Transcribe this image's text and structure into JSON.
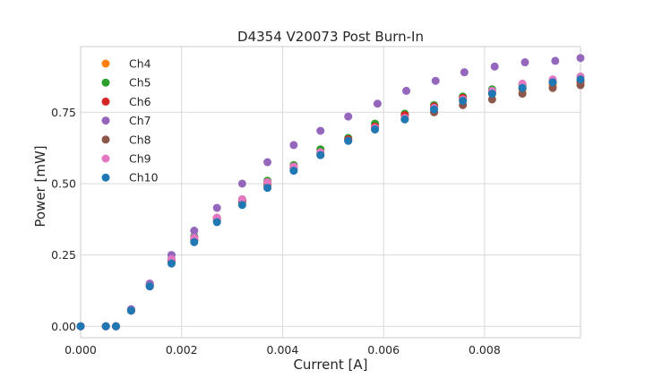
{
  "chart_data": {
    "type": "scatter",
    "title": "D4354 V20073 Post Burn-In",
    "xlabel": "Current [A]",
    "ylabel": "Power [mW]",
    "xlim": [
      0,
      0.0099
    ],
    "ylim": [
      -0.04,
      0.98
    ],
    "x_ticks": [
      0,
      0.002,
      0.004,
      0.006,
      0.008
    ],
    "x_tick_labels": [
      "0.000",
      "0.002",
      "0.004",
      "0.006",
      "0.008"
    ],
    "y_ticks": [
      0,
      0.25,
      0.5,
      0.75
    ],
    "y_tick_labels": [
      "0.00",
      "0.25",
      "0.50",
      "0.75"
    ],
    "grid": true,
    "legend_position": "top-left",
    "series": [
      {
        "name": "Ch4",
        "color": "#ff7f0e",
        "x": [
          0,
          0.0005,
          0.0007,
          0.001,
          0.00137,
          0.0018,
          0.00225,
          0.0027,
          0.0032,
          0.0037,
          0.00422,
          0.00475,
          0.0053,
          0.00583,
          0.00642,
          0.007,
          0.00757,
          0.00815,
          0.00875,
          0.00935,
          0.0099
        ],
        "y": [
          0,
          0,
          0,
          0.055,
          0.14,
          0.23,
          0.305,
          0.375,
          0.44,
          0.5,
          0.56,
          0.61,
          0.655,
          0.695,
          0.735,
          0.765,
          0.79,
          0.815,
          0.83,
          0.845,
          0.855
        ]
      },
      {
        "name": "Ch5",
        "color": "#2ca02c",
        "x": [
          0,
          0.0005,
          0.0007,
          0.001,
          0.00137,
          0.0018,
          0.00225,
          0.0027,
          0.0032,
          0.0037,
          0.00422,
          0.00475,
          0.0053,
          0.00583,
          0.00642,
          0.007,
          0.00757,
          0.00815,
          0.00875,
          0.00935,
          0.0099
        ],
        "y": [
          0,
          0,
          0,
          0.055,
          0.145,
          0.235,
          0.315,
          0.38,
          0.445,
          0.51,
          0.565,
          0.62,
          0.66,
          0.71,
          0.745,
          0.775,
          0.805,
          0.83,
          0.845,
          0.86,
          0.875
        ]
      },
      {
        "name": "Ch6",
        "color": "#d62728",
        "x": [
          0,
          0.0005,
          0.0007,
          0.001,
          0.00137,
          0.0018,
          0.00225,
          0.0027,
          0.0032,
          0.0037,
          0.00422,
          0.00475,
          0.0053,
          0.00583,
          0.00642,
          0.007,
          0.00757,
          0.00815,
          0.00875,
          0.00935,
          0.0099
        ],
        "y": [
          0,
          0,
          0,
          0.055,
          0.145,
          0.23,
          0.31,
          0.38,
          0.44,
          0.505,
          0.56,
          0.61,
          0.655,
          0.7,
          0.74,
          0.77,
          0.8,
          0.82,
          0.835,
          0.855,
          0.86
        ]
      },
      {
        "name": "Ch7",
        "color": "#9467bd",
        "x": [
          0,
          0.0005,
          0.0007,
          0.001,
          0.00137,
          0.0018,
          0.00225,
          0.0027,
          0.0032,
          0.0037,
          0.00422,
          0.00475,
          0.0053,
          0.00588,
          0.00645,
          0.00703,
          0.0076,
          0.0082,
          0.0088,
          0.0094,
          0.0099
        ],
        "y": [
          0,
          0,
          0,
          0.06,
          0.15,
          0.25,
          0.335,
          0.415,
          0.5,
          0.575,
          0.635,
          0.685,
          0.735,
          0.78,
          0.825,
          0.86,
          0.89,
          0.91,
          0.925,
          0.93,
          0.94
        ]
      },
      {
        "name": "Ch8",
        "color": "#8c564b",
        "x": [
          0,
          0.0005,
          0.0007,
          0.001,
          0.00137,
          0.0018,
          0.00225,
          0.0027,
          0.0032,
          0.0037,
          0.00422,
          0.00475,
          0.0053,
          0.00583,
          0.00642,
          0.007,
          0.00757,
          0.00815,
          0.00875,
          0.00935,
          0.0099
        ],
        "y": [
          0,
          0,
          0,
          0.055,
          0.14,
          0.225,
          0.3,
          0.37,
          0.435,
          0.495,
          0.55,
          0.6,
          0.65,
          0.69,
          0.725,
          0.75,
          0.775,
          0.795,
          0.815,
          0.835,
          0.845
        ]
      },
      {
        "name": "Ch9",
        "color": "#e377c2",
        "x": [
          0,
          0.0005,
          0.0007,
          0.001,
          0.00137,
          0.0018,
          0.00225,
          0.0027,
          0.0032,
          0.0037,
          0.00422,
          0.00475,
          0.0053,
          0.00583,
          0.00642,
          0.007,
          0.00757,
          0.00815,
          0.00875,
          0.00935,
          0.0099
        ],
        "y": [
          0,
          0,
          0,
          0.055,
          0.14,
          0.235,
          0.31,
          0.38,
          0.445,
          0.505,
          0.56,
          0.61,
          0.65,
          0.695,
          0.73,
          0.765,
          0.795,
          0.825,
          0.85,
          0.865,
          0.875
        ]
      },
      {
        "name": "Ch10",
        "color": "#1f77b4",
        "x": [
          0,
          0.0005,
          0.0007,
          0.001,
          0.00137,
          0.0018,
          0.00225,
          0.0027,
          0.0032,
          0.0037,
          0.00422,
          0.00475,
          0.0053,
          0.00583,
          0.00642,
          0.007,
          0.00757,
          0.00815,
          0.00875,
          0.00935,
          0.0099
        ],
        "y": [
          0,
          0,
          0,
          0.055,
          0.14,
          0.22,
          0.295,
          0.365,
          0.425,
          0.485,
          0.545,
          0.6,
          0.65,
          0.69,
          0.725,
          0.76,
          0.79,
          0.815,
          0.835,
          0.855,
          0.865
        ]
      }
    ]
  }
}
